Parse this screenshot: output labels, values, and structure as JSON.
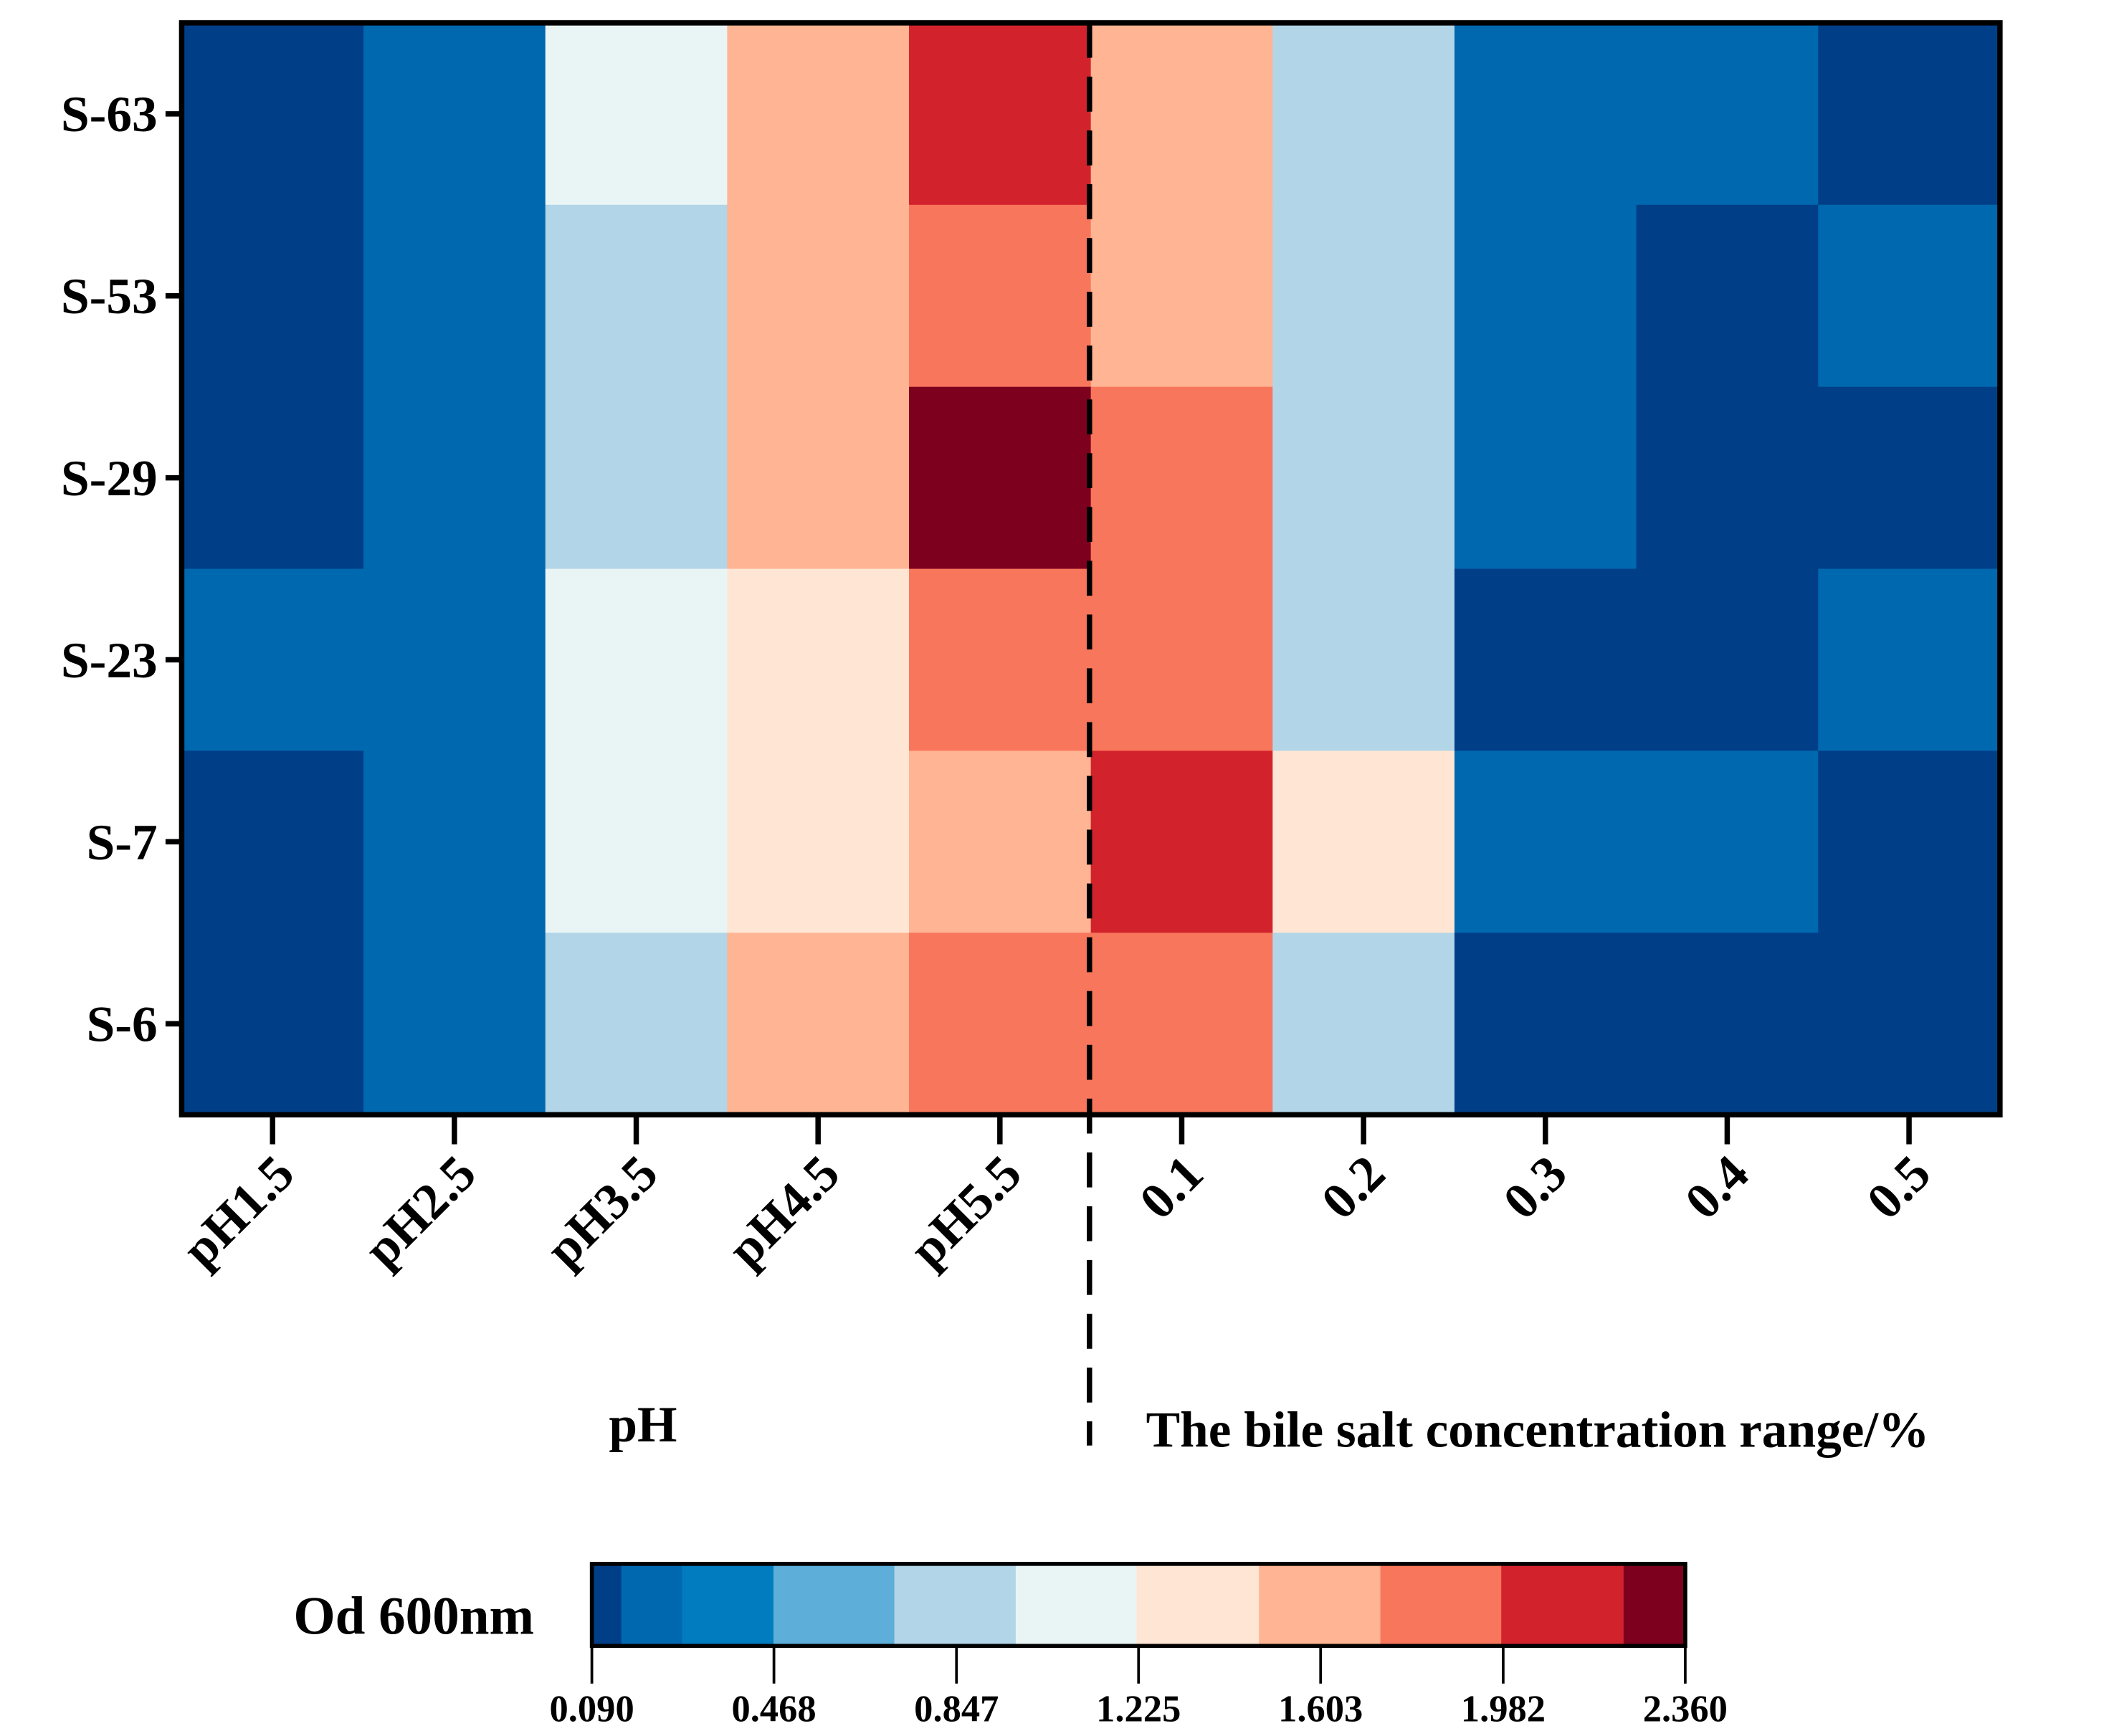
{
  "chart_data": {
    "type": "heatmap",
    "title": "",
    "rows": [
      "S-63",
      "S-53",
      "S-29",
      "S-23",
      "S-7",
      "S-6"
    ],
    "columns": [
      "pH1.5",
      "pH2.5",
      "pH3.5",
      "pH4.5",
      "pH5.5",
      "0.1",
      "0.2",
      "0.3",
      "0.4",
      "0.5"
    ],
    "values": [
      [
        0.12,
        0.22,
        1.1,
        1.6,
        2.1,
        1.6,
        0.85,
        0.22,
        0.22,
        0.12
      ],
      [
        0.12,
        0.22,
        0.85,
        1.6,
        1.85,
        1.6,
        0.85,
        0.22,
        0.12,
        0.22
      ],
      [
        0.12,
        0.22,
        0.85,
        1.6,
        2.3,
        1.85,
        0.85,
        0.22,
        0.12,
        0.12
      ],
      [
        0.22,
        0.22,
        1.1,
        1.35,
        1.85,
        1.85,
        0.85,
        0.12,
        0.12,
        0.22
      ],
      [
        0.12,
        0.22,
        1.1,
        1.35,
        1.6,
        2.1,
        1.35,
        0.22,
        0.22,
        0.12
      ],
      [
        0.12,
        0.22,
        0.85,
        1.6,
        1.85,
        1.85,
        0.85,
        0.12,
        0.12,
        0.12
      ]
    ],
    "group_labels": [
      "pH",
      "The bile salt concentration range/%"
    ],
    "colorbar": {
      "label": "Od 600nm",
      "range": [
        0.09,
        2.36
      ],
      "ticks": [
        "0.090",
        "0.468",
        "0.847",
        "1.225",
        "1.603",
        "1.982",
        "2.360"
      ],
      "bounds": [
        0.09,
        0.151,
        0.277,
        0.467,
        0.718,
        0.97,
        1.221,
        1.475,
        1.727,
        1.978,
        2.232,
        2.36
      ],
      "colors": [
        "#003f87",
        "#0068af",
        "#007cbf",
        "#5daed8",
        "#b2d5e7",
        "#e9f5f5",
        "#ffe6d4",
        "#ffb493",
        "#f8765b",
        "#d2232d",
        "#7d001f"
      ]
    },
    "separator": "dashed line between pH5.5 and 0.1"
  }
}
